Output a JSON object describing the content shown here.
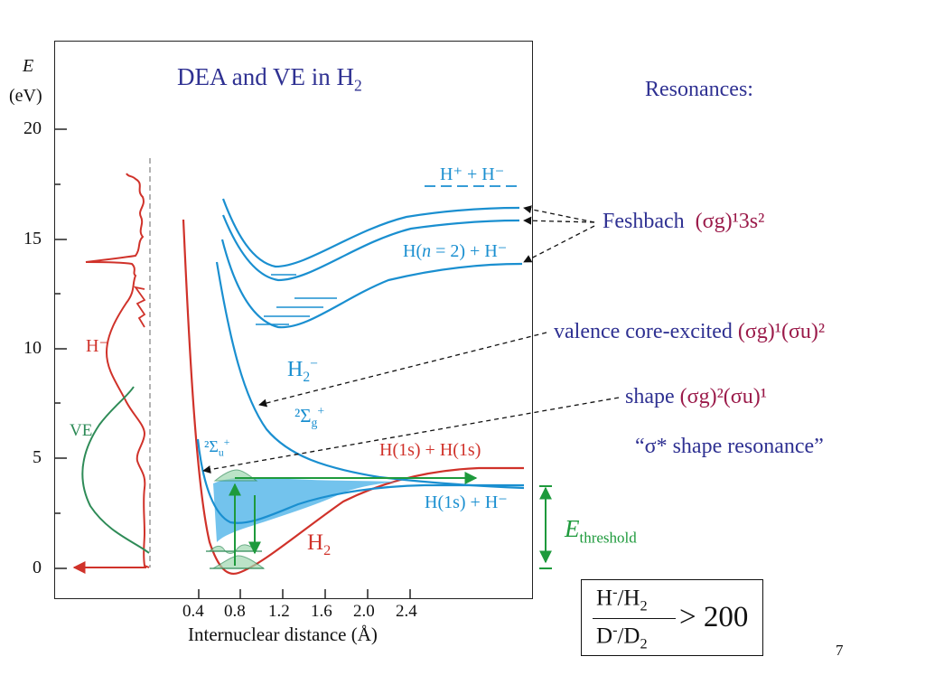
{
  "title": {
    "text": "DEA and VE in H",
    "sub": "2"
  },
  "axes": {
    "y_label_symbol": "E",
    "y_label_unit": "(eV)",
    "y_ticks": [
      "20",
      "15",
      "10",
      "5",
      "0"
    ],
    "x_ticks": [
      "0.4",
      "0.8",
      "1.2",
      "1.6",
      "2.0",
      "2.4"
    ],
    "x_label": "Internuclear distance (Å)"
  },
  "plot_labels": {
    "h_minus": "H⁻",
    "ve": "VE",
    "hplus_hminus": "H⁺ + H⁻",
    "hn2_hminus_a": "H(",
    "hn2_hminus_n": "n",
    "hn2_hminus_b": " = 2) + H⁻",
    "h2minus": "H",
    "h2minus_sub": "2",
    "h2minus_sup": "−",
    "sigma_g": "²Σ",
    "sigma_g_sub": "g",
    "sigma_g_sup": "+",
    "sigma_u": "²Σ",
    "sigma_u_sub": "u",
    "sigma_u_sup": "+",
    "h1s_h1s": "H(1s) + H(1s)",
    "h1s_hminus": "H(1s) + H⁻",
    "h2": "H",
    "h2_sub": "2",
    "e_threshold": "E",
    "e_threshold_sub": "threshold"
  },
  "resonances": {
    "heading": "Resonances:",
    "feshbach_name": "Feshbach",
    "feshbach_config": "(σg)¹3s²",
    "valence_name": "valence core-excited",
    "valence_config": "(σg)¹(σu)²",
    "shape_name": "shape",
    "shape_config": "(σg)²(σu)¹",
    "sigma_star": "“σ* shape resonance”"
  },
  "ratio": {
    "num_a": "H",
    "num_sup": "-",
    "num_b": "/H",
    "num_sub": "2",
    "den_a": "D",
    "den_sup": "-",
    "den_b": "/D",
    "den_sub": "2",
    "relation": "> 200"
  },
  "page_number": "7",
  "colors": {
    "red": "#d0322a",
    "blue": "#1a8fd0",
    "green": "#2e8b57",
    "arrow_green": "#1e9a3c",
    "title_blue": "#2f3192",
    "magenta": "#9b1b4a",
    "fill_blue": "#5bb8ea"
  }
}
